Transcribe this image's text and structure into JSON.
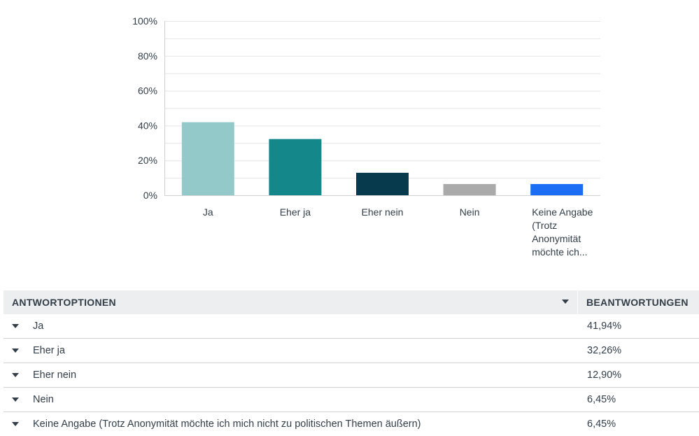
{
  "chart_data": {
    "type": "bar",
    "categories": [
      "Ja",
      "Eher ja",
      "Eher nein",
      "Nein",
      "Keine Angabe (Trotz Anonymität möchte ich..."
    ],
    "category_label_lines": [
      [
        "Ja"
      ],
      [
        "Eher ja"
      ],
      [
        "Eher nein"
      ],
      [
        "Nein"
      ],
      [
        "Keine Angabe",
        "(Trotz",
        "Anonymität",
        "möchte ich..."
      ]
    ],
    "values": [
      41.94,
      32.26,
      12.9,
      6.45,
      6.45
    ],
    "colors": [
      "#93c9c9",
      "#13878a",
      "#063a4c",
      "#aaaaaa",
      "#1b6ef3"
    ],
    "ylim": [
      0,
      100
    ],
    "yticks": [
      0,
      20,
      40,
      60,
      80,
      100
    ],
    "ytick_labels": [
      "0%",
      "20%",
      "40%",
      "60%",
      "80%",
      "100%"
    ],
    "title": "",
    "xlabel": "",
    "ylabel": "",
    "grid": true
  },
  "table": {
    "header_options": "ANTWORTOPTIONEN",
    "header_responses": "BEANTWORTUNGEN",
    "sort_icon": "sort-down-icon",
    "expand_icon": "caret-down-icon",
    "rows": [
      {
        "label": "Ja",
        "value": "41,94%"
      },
      {
        "label": "Eher ja",
        "value": "32,26%"
      },
      {
        "label": "Eher nein",
        "value": "12,90%"
      },
      {
        "label": "Nein",
        "value": "6,45%"
      },
      {
        "label": "Keine Angabe (Trotz Anonymität möchte ich mich nicht zu politischen Themen äußern)",
        "value": "6,45%"
      }
    ]
  }
}
